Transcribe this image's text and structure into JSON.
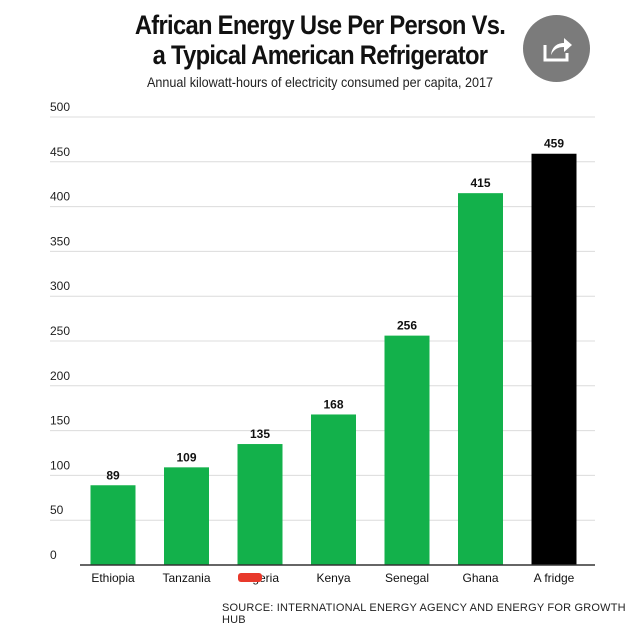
{
  "chart_data": {
    "type": "bar",
    "title_line1": "African Energy Use Per Person Vs.",
    "title_line2": "a Typical American Refrigerator",
    "subtitle": "Annual kilowatt-hours of electricity consumed per capita, 2017",
    "categories": [
      "Ethiopia",
      "Tanzania",
      "Nigeria",
      "Kenya",
      "Senegal",
      "Ghana",
      "A fridge"
    ],
    "values": [
      89,
      109,
      135,
      168,
      256,
      415,
      459
    ],
    "colors": [
      "#13b14b",
      "#13b14b",
      "#13b14b",
      "#13b14b",
      "#13b14b",
      "#13b14b",
      "#000000"
    ],
    "ylim": [
      0,
      500
    ],
    "yticks": [
      0,
      50,
      100,
      150,
      200,
      250,
      300,
      350,
      400,
      450,
      500
    ],
    "grid": true,
    "annotation": "Nigeria label partially struck through in red",
    "annotation_color": "#e8392b",
    "source": "SOURCE: INTERNATIONAL ENERGY AGENCY AND ENERGY FOR GROWTH HUB"
  },
  "share_button": {
    "icon": "share-icon",
    "color": "#7b7b7b"
  }
}
